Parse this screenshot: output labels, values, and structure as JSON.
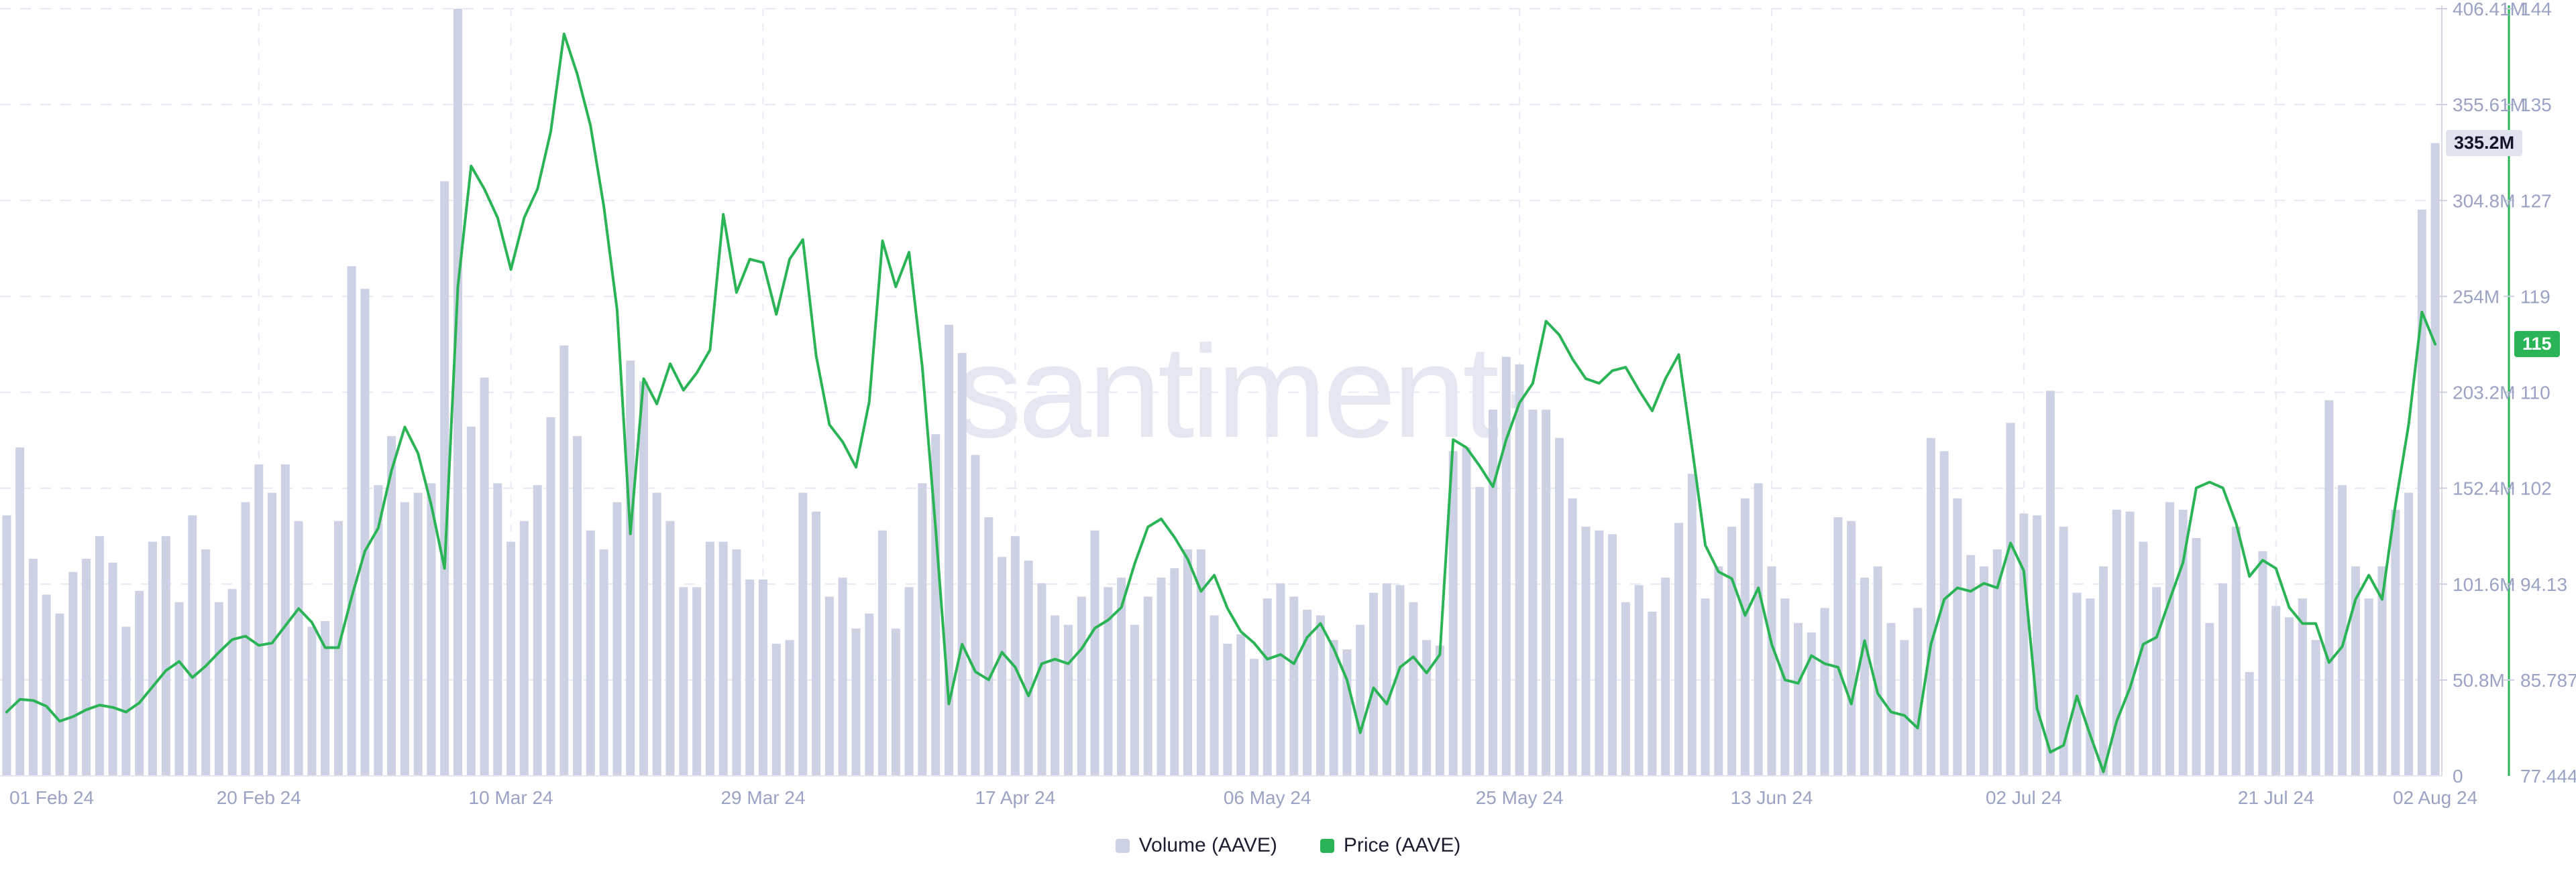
{
  "watermark": {
    "text": "santiment·"
  },
  "badges": {
    "volume": "335.2M",
    "price": "115"
  },
  "legend": {
    "items": [
      {
        "label": "Volume (AAVE)",
        "color": "#cdd1e4"
      },
      {
        "label": "Price (AAVE)",
        "color": "#2ab456"
      }
    ]
  },
  "colors": {
    "bar": "#cdd1e4",
    "price_line": "#2ab456",
    "axis_text": "#9aa3c3",
    "grid": "#e6e9f4",
    "grid_vertical": "#e9ebf5",
    "volume_axis_line": "#d6d9e8",
    "bottom_axis_line": "#e4e7f1",
    "tick_mark": "#ccd0e2",
    "watermark": "#e4e6f2",
    "badge_volume_bg": "#dfe2ef",
    "badge_price_bg": "#2ab456"
  },
  "chart_data": {
    "type": "bar+line",
    "title": "",
    "x_range": "01 Feb 24 – 02 Aug 24, daily",
    "legend_position": "bottom-center",
    "grid": "dashed horizontal and vertical",
    "x_tick_labels": [
      "01 Feb 24",
      "20 Feb 24",
      "10 Mar 24",
      "29 Mar 24",
      "17 Apr 24",
      "06 May 24",
      "25 May 24",
      "13 Jun 24",
      "02 Jul 24",
      "21 Jul 24",
      "02 Aug 24"
    ],
    "x_tick_day_index": [
      0,
      19,
      38,
      57,
      76,
      95,
      114,
      133,
      152,
      171,
      183
    ],
    "volume_axis": {
      "unit": "M",
      "min": 0,
      "max": 406.41,
      "ticks": [
        0,
        50.8,
        101.6,
        152.4,
        203.2,
        254,
        304.8,
        355.61,
        406.41
      ],
      "tick_labels": [
        "0",
        "50.8M",
        "101.6M",
        "152.4M",
        "203.2M",
        "254M",
        "304.8M",
        "355.61M",
        "406.41M"
      ]
    },
    "price_axis": {
      "min": 77.444,
      "max": 144.19,
      "ticks": [
        77.444,
        85.787,
        94.13,
        102.47,
        110.81,
        119.16,
        127.5,
        135.84,
        144.19
      ],
      "tick_labels": [
        "77.444",
        "85.787",
        "94.13",
        "102",
        "110",
        "119",
        "127",
        "135",
        "144"
      ]
    },
    "latest": {
      "volume_label": "335.2M",
      "price_label": "115"
    },
    "series": [
      {
        "name": "Volume (AAVE)",
        "type": "bar",
        "unit": "millions",
        "values": [
          138,
          174,
          115,
          96,
          86,
          108,
          115,
          127,
          113,
          79,
          98,
          124,
          127,
          92,
          138,
          120,
          92,
          99,
          145,
          165,
          150,
          165,
          135,
          79,
          82,
          135,
          270,
          258,
          154,
          180,
          145,
          150,
          155,
          315,
          406.41,
          185,
          211,
          155,
          124,
          135,
          154,
          190,
          228,
          180,
          130,
          120,
          145,
          220,
          209,
          150,
          135,
          100,
          100,
          124,
          124,
          120,
          104,
          104,
          70,
          72,
          150,
          140,
          95,
          105,
          78,
          86,
          130,
          78,
          100,
          155,
          181,
          239,
          224,
          170,
          137,
          116,
          127,
          114,
          102,
          85,
          80,
          95,
          130,
          100,
          105,
          80,
          95,
          105,
          110,
          120,
          120,
          85,
          70,
          75,
          62,
          94,
          102,
          95,
          88,
          85,
          72,
          67,
          80,
          97,
          102,
          101,
          92,
          72,
          69,
          172,
          174,
          153,
          194,
          222,
          218,
          194,
          194,
          179,
          147,
          132,
          130,
          128,
          92,
          101,
          87,
          105,
          134,
          160,
          94,
          111,
          132,
          147,
          155,
          111,
          94,
          81,
          76,
          89,
          137,
          135,
          105,
          111,
          81,
          72,
          89,
          179,
          172,
          147,
          117,
          111,
          120,
          187,
          139,
          138,
          204,
          132,
          97,
          94,
          111,
          141,
          140,
          124,
          100,
          145,
          141,
          126,
          81,
          102,
          132,
          55,
          119,
          90,
          84,
          94,
          72,
          199,
          154,
          111,
          94,
          111,
          141,
          150,
          300,
          335.2
        ]
      },
      {
        "name": "Price (AAVE)",
        "type": "line",
        "unit": "USD",
        "values": [
          83.0,
          84.1,
          84.0,
          83.5,
          82.2,
          82.6,
          83.2,
          83.6,
          83.4,
          83.0,
          83.8,
          85.2,
          86.6,
          87.4,
          86.0,
          87.0,
          88.2,
          89.3,
          89.6,
          88.8,
          89.0,
          90.5,
          92.0,
          90.8,
          88.6,
          88.6,
          93.0,
          97.0,
          99.0,
          104.0,
          107.8,
          105.5,
          101.0,
          95.5,
          120.0,
          130.5,
          128.5,
          126.0,
          121.5,
          126.0,
          128.5,
          133.5,
          142.0,
          138.5,
          134.0,
          127.0,
          118.0,
          98.5,
          112.0,
          109.8,
          113.3,
          111.0,
          112.5,
          114.5,
          126.3,
          119.5,
          122.4,
          122.1,
          117.6,
          122.4,
          124.1,
          114.0,
          108.0,
          106.5,
          104.3,
          110.0,
          124.0,
          120.0,
          123.0,
          113.0,
          99.0,
          83.7,
          88.9,
          86.5,
          85.8,
          88.2,
          86.9,
          84.4,
          87.2,
          87.6,
          87.2,
          88.5,
          90.3,
          91.0,
          92.1,
          95.9,
          99.1,
          99.8,
          98.2,
          96.3,
          93.5,
          94.9,
          92.0,
          90.0,
          89.0,
          87.6,
          88.0,
          87.2,
          89.5,
          90.7,
          88.5,
          85.8,
          81.2,
          85.1,
          83.7,
          86.9,
          87.8,
          86.4,
          88.0,
          106.7,
          106.0,
          104.4,
          102.6,
          106.7,
          109.9,
          111.6,
          117.0,
          115.8,
          113.7,
          112.0,
          111.6,
          112.7,
          113.0,
          111.0,
          109.2,
          112.0,
          114.1,
          106.0,
          97.5,
          95.2,
          94.6,
          91.4,
          93.8,
          88.9,
          85.8,
          85.5,
          87.9,
          87.2,
          86.9,
          83.7,
          89.2,
          84.6,
          83.0,
          82.7,
          81.6,
          88.9,
          92.8,
          93.8,
          93.5,
          94.2,
          93.8,
          97.7,
          95.3,
          83.3,
          79.5,
          80.1,
          84.4,
          81.0,
          77.8,
          82.2,
          85.1,
          88.9,
          89.5,
          92.8,
          96.0,
          102.5,
          103.0,
          102.5,
          99.4,
          94.8,
          96.2,
          95.5,
          92.1,
          90.7,
          90.7,
          87.3,
          88.7,
          92.8,
          94.9,
          92.8,
          101.0,
          108.0,
          117.8,
          115.0
        ]
      }
    ]
  }
}
